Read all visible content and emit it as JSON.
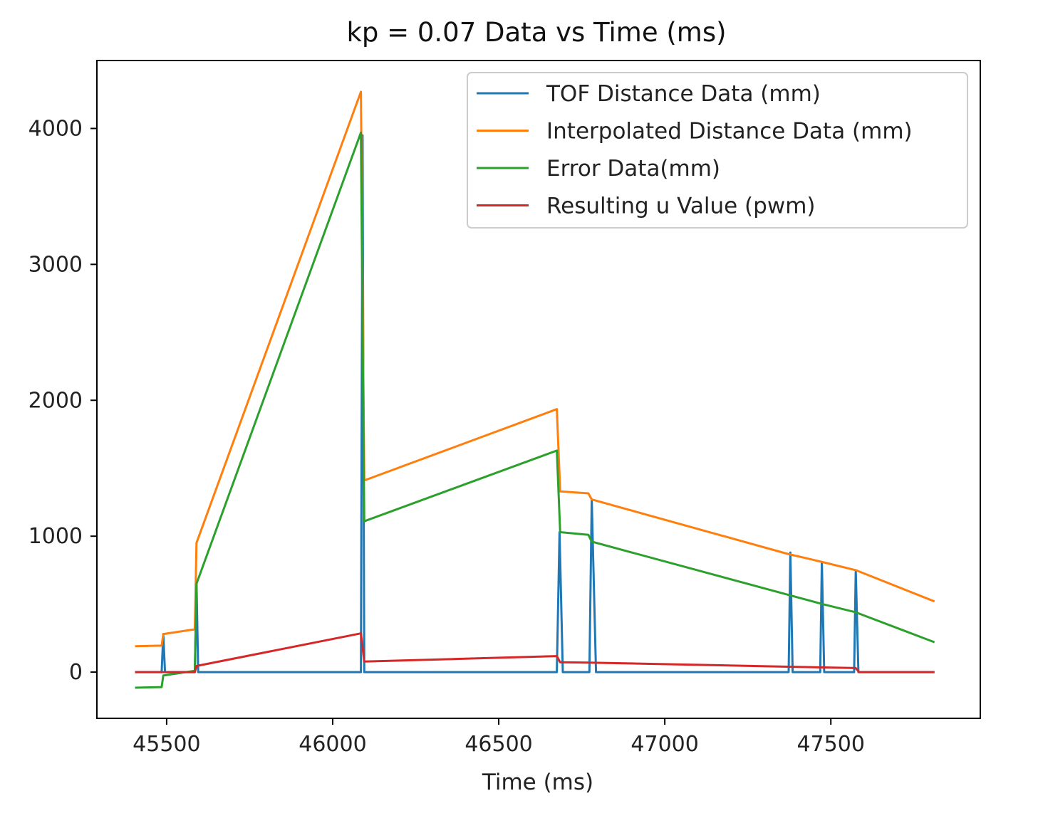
{
  "chart_data": {
    "type": "line",
    "title": "kp = 0.07 Data vs Time (ms)",
    "xlabel": "Time (ms)",
    "ylabel": "",
    "xlim": [
      45290,
      47950
    ],
    "ylim": [
      -340,
      4500
    ],
    "x_ticks": [
      45500,
      46000,
      46500,
      47000,
      47500
    ],
    "x_tick_labels": [
      "45500",
      "46000",
      "46500",
      "47000",
      "47500"
    ],
    "y_ticks": [
      0,
      1000,
      2000,
      3000,
      4000
    ],
    "y_tick_labels": [
      "0",
      "1000",
      "2000",
      "3000",
      "4000"
    ],
    "grid": false,
    "legend_position": "top-right",
    "series": [
      {
        "name": "TOF Distance Data (mm)",
        "color": "#1f77b4",
        "x": [
          45405,
          45485,
          45490,
          45495,
          45585,
          45590,
          45595,
          46085,
          46090,
          46095,
          46675,
          46683,
          46693,
          46773,
          46780,
          46793,
          47373,
          47378,
          47385,
          47468,
          47473,
          47480,
          47570,
          47575,
          47583,
          47812
        ],
        "y": [
          0,
          0,
          280,
          0,
          0,
          660,
          0,
          0,
          3950,
          0,
          0,
          1030,
          0,
          0,
          1270,
          0,
          0,
          880,
          0,
          0,
          810,
          0,
          0,
          750,
          0,
          0
        ]
      },
      {
        "name": "Interpolated Distance Data (mm)",
        "color": "#ff7f0e",
        "x": [
          45405,
          45485,
          45490,
          45585,
          45590,
          46085,
          46095,
          46675,
          46685,
          46770,
          46780,
          47370,
          47475,
          47575,
          47812
        ],
        "y": [
          190,
          195,
          280,
          315,
          950,
          4270,
          1410,
          1935,
          1330,
          1315,
          1270,
          870,
          810,
          750,
          520
        ]
      },
      {
        "name": "Error Data(mm)",
        "color": "#2ca02c",
        "x": [
          45405,
          45485,
          45490,
          45585,
          45590,
          46085,
          46095,
          46675,
          46685,
          46770,
          46780,
          47370,
          47475,
          47575,
          47812
        ],
        "y": [
          -115,
          -110,
          -25,
          10,
          650,
          3970,
          1110,
          1630,
          1030,
          1010,
          960,
          570,
          500,
          440,
          220
        ]
      },
      {
        "name": "Resulting u Value (pwm)",
        "color": "#d62728",
        "x": [
          45405,
          45585,
          45590,
          46085,
          46095,
          46675,
          46685,
          46770,
          47370,
          47575,
          47585,
          47812
        ],
        "y": [
          0,
          0,
          45,
          285,
          78,
          118,
          72,
          70,
          40,
          30,
          0,
          0
        ]
      }
    ]
  }
}
